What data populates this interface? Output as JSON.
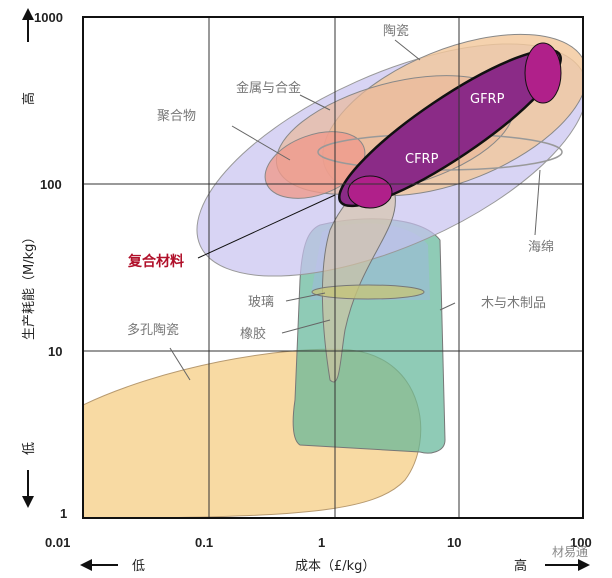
{
  "chart_data": {
    "type": "bubble-map",
    "xlabel": "成本（£/kg）",
    "ylabel": "生产耗能（M/kg）",
    "x_scale": "log",
    "y_scale": "log",
    "xlim": [
      0.01,
      100
    ],
    "ylim": [
      1,
      1000
    ],
    "x_ticks": [
      "0.01",
      "0.1",
      "1",
      "10",
      "100"
    ],
    "y_ticks": [
      "1",
      "10",
      "100",
      "1000"
    ],
    "x_low": "低",
    "x_high": "高",
    "y_low": "低",
    "y_high": "高",
    "grid": true,
    "regions": [
      {
        "name": "陶瓷",
        "color": "#f2c79a"
      },
      {
        "name": "金属与合金",
        "color": "#e8b79a"
      },
      {
        "name": "聚合物",
        "color": "#ef9a8c"
      },
      {
        "name": "复合材料",
        "color": "#8b2b87"
      },
      {
        "name": "GFRP",
        "color": "#b0208a"
      },
      {
        "name": "CFRP",
        "color": "#b0208a"
      },
      {
        "name": "海绵",
        "color": "#d9c0a8"
      },
      {
        "name": "玻璃",
        "color": "#c5c47a"
      },
      {
        "name": "橡胶",
        "color": "#d6c2a0"
      },
      {
        "name": "木与木制品",
        "color": "#6fbfa0"
      },
      {
        "name": "多孔陶瓷",
        "color": "#f6d08e"
      }
    ]
  },
  "watermark": "材易通"
}
